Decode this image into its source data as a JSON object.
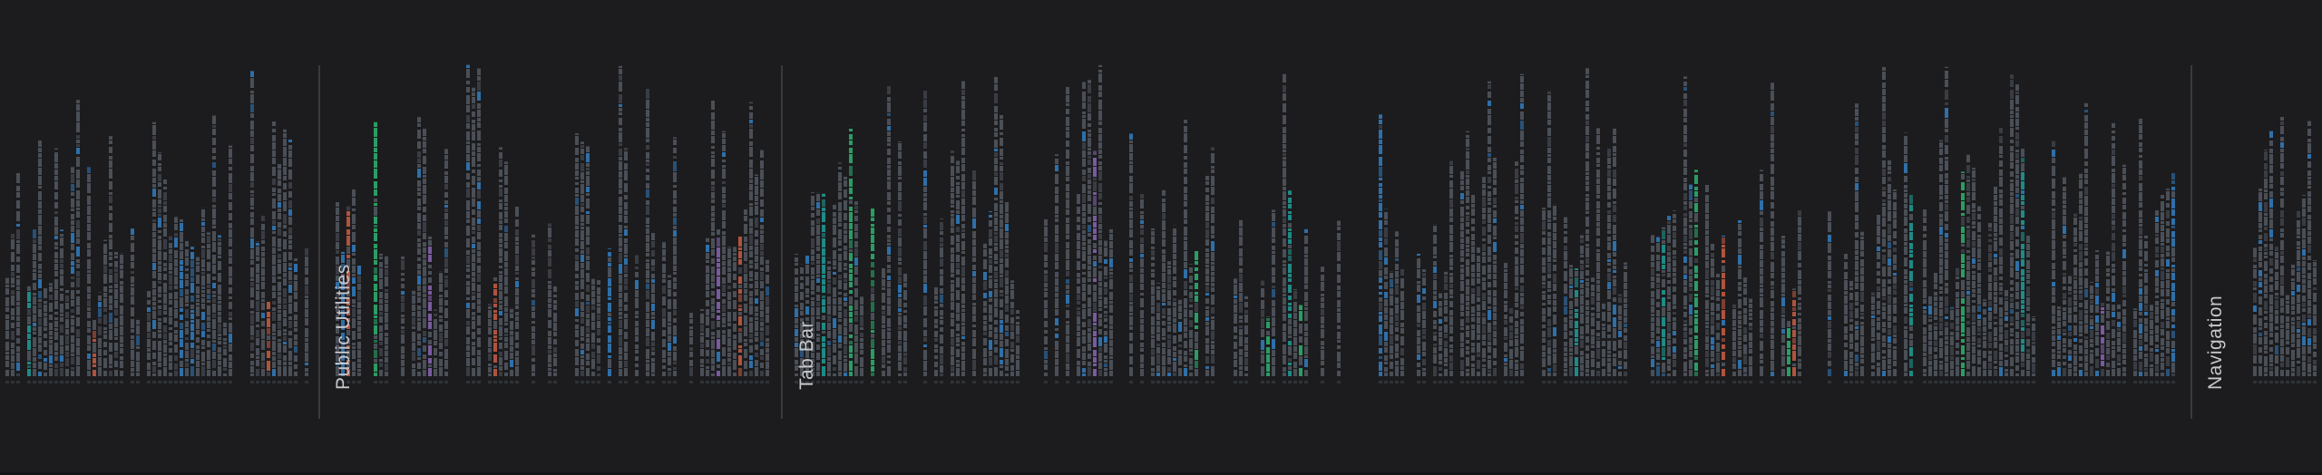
{
  "canvas": {
    "background": "#1c1c1e",
    "divider_color": "#3a3a3c",
    "label_color": "#c7c7cc"
  },
  "palette": {
    "base": "#4a4f57",
    "base_dim": "#2f3338",
    "blue": "#2f6fa8",
    "purple": "#7a5a9e",
    "teal": "#1f8a86",
    "green": "#2a9d63",
    "orange": "#b0533d",
    "olive": "#8a8f3a"
  },
  "sections": [
    {
      "label": ""
    },
    {
      "label": "Public Utilities"
    },
    {
      "label": "Tab Bar"
    },
    {
      "label": "Navigation"
    }
  ]
}
